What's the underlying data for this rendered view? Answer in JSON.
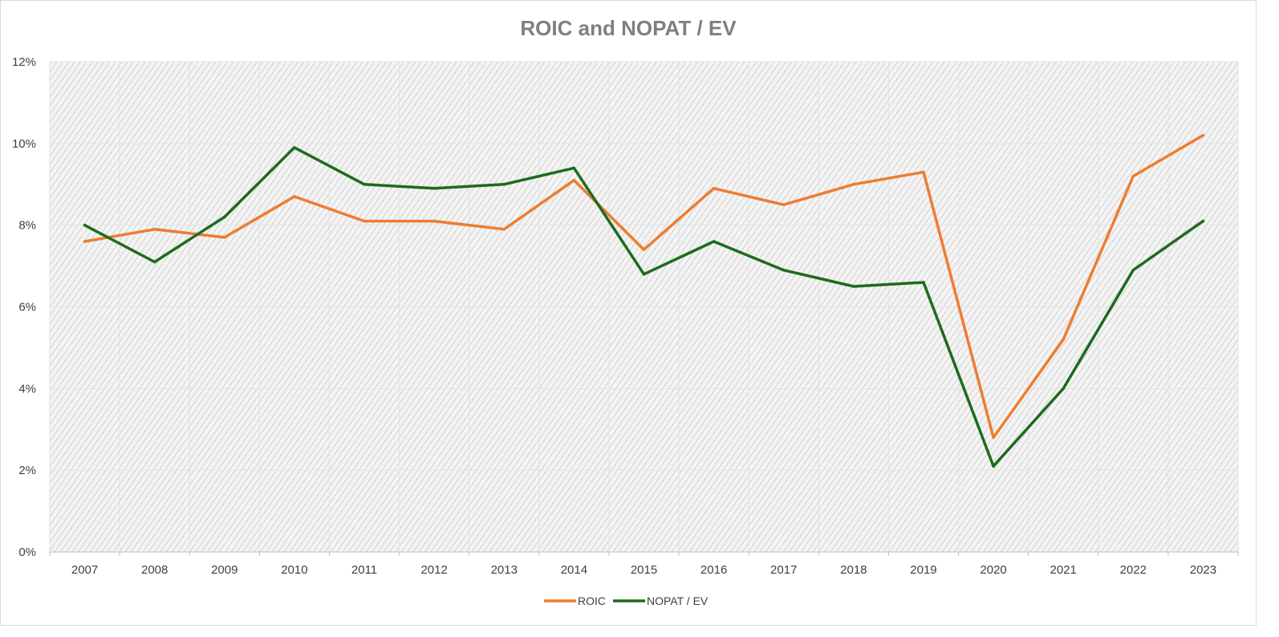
{
  "chart_data": {
    "type": "line",
    "title": "ROIC and NOPAT / EV",
    "xlabel": "",
    "ylabel": "",
    "categories": [
      "2007",
      "2008",
      "2009",
      "2010",
      "2011",
      "2012",
      "2013",
      "2014",
      "2015",
      "2016",
      "2017",
      "2018",
      "2019",
      "2020",
      "2021",
      "2022",
      "2023"
    ],
    "ylim": [
      0,
      12
    ],
    "yticks": [
      0,
      2,
      4,
      6,
      8,
      10,
      12
    ],
    "ytick_labels": [
      "0%",
      "2%",
      "4%",
      "6%",
      "8%",
      "10%",
      "12%"
    ],
    "grid": true,
    "legend_position": "bottom",
    "series": [
      {
        "name": "ROIC",
        "color": "#ed7d31",
        "values": [
          7.6,
          7.9,
          7.7,
          8.7,
          8.1,
          8.1,
          7.9,
          9.1,
          7.4,
          8.9,
          8.5,
          9.0,
          9.3,
          2.8,
          5.2,
          9.2,
          10.2
        ]
      },
      {
        "name": "NOPAT / EV",
        "color": "#1e6b1e",
        "values": [
          8.0,
          7.1,
          8.2,
          9.9,
          9.0,
          8.9,
          9.0,
          9.4,
          6.8,
          7.6,
          6.9,
          6.5,
          6.6,
          2.1,
          4.0,
          6.9,
          8.1
        ]
      }
    ]
  }
}
